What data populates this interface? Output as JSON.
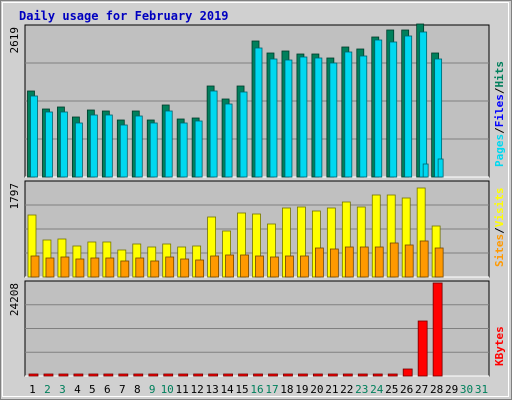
{
  "chart_data": {
    "type": "bar",
    "title": "Daily usage for February 2019",
    "colors": {
      "title": "#0000C0",
      "hits": "#00805C",
      "files": "#00D8F0",
      "pages": "#00D8F0",
      "visits": "#FFFF00",
      "sites": "#FF9900",
      "kbytes": "#FF0000",
      "files_label": "#0000FF",
      "weekend": "#00805C",
      "weekday": "#000000",
      "plot_bg": "#C0C0C0",
      "frame_bg": "#D0D0D0"
    },
    "x": [
      "1",
      "2",
      "3",
      "4",
      "5",
      "6",
      "7",
      "8",
      "9",
      "10",
      "11",
      "12",
      "13",
      "14",
      "15",
      "16",
      "17",
      "18",
      "19",
      "20",
      "21",
      "22",
      "23",
      "24",
      "25",
      "26",
      "27",
      "28",
      "29",
      "30",
      "31"
    ],
    "weekend_days": [
      "2",
      "3",
      "9",
      "10",
      "16",
      "17",
      "23",
      "24",
      "30",
      "31"
    ],
    "panels": [
      {
        "name": "hits-files-pages",
        "max_label": "2619",
        "ymax": 2619,
        "right_labels": [
          {
            "text": "Pages",
            "color": "#00D8F0"
          },
          {
            "text": "/",
            "color": "#000000"
          },
          {
            "text": "Files",
            "color": "#0000FF"
          },
          {
            "text": "/",
            "color": "#000000"
          },
          {
            "text": "Hits",
            "color": "#00805C"
          }
        ],
        "series": [
          {
            "name": "Hits",
            "color": "#00805C",
            "values": [
              1500,
              1180,
              1230,
              1040,
              1170,
              1150,
              990,
              1160,
              1000,
              1250,
              1020,
              1030,
              1585,
              1370,
              1590,
              2380,
              2170,
              2200,
              2150,
              2140,
              2080,
              2270,
              2230,
              2450,
              2570,
              2570,
              2680,
              2160,
              0,
              0,
              0
            ]
          },
          {
            "name": "Files",
            "color": "#00D8F0",
            "values": [
              1420,
              1140,
              1140,
              950,
              1090,
              1080,
              910,
              1060,
              940,
              1160,
              950,
              970,
              1500,
              1280,
              1490,
              2250,
              2060,
              2050,
              2100,
              2080,
              1990,
              2180,
              2110,
              2390,
              2360,
              2470,
              2530,
              2060,
              0,
              0,
              0
            ]
          },
          {
            "name": "Pages",
            "color": "#00D8F0",
            "values": [
              0,
              0,
              0,
              0,
              0,
              0,
              0,
              0,
              0,
              0,
              0,
              0,
              0,
              0,
              0,
              0,
              0,
              0,
              0,
              0,
              0,
              0,
              0,
              0,
              0,
              0,
              220,
              320,
              0,
              0,
              0
            ]
          }
        ]
      },
      {
        "name": "visits-sites",
        "max_label": "1797",
        "ymax": 1797,
        "right_labels": [
          {
            "text": "Sites",
            "color": "#FF9900"
          },
          {
            "text": "/",
            "color": "#000000"
          },
          {
            "text": "Visits",
            "color": "#FFFF00"
          }
        ],
        "series": [
          {
            "name": "Visits",
            "color": "#FFFF00",
            "values": [
              1180,
              700,
              730,
              590,
              660,
              660,
              520,
              640,
              580,
              640,
              580,
              590,
              1150,
              870,
              1220,
              1210,
              1020,
              1320,
              1330,
              1260,
              1320,
              1430,
              1340,
              1560,
              1560,
              1510,
              1700,
              970,
              0,
              0,
              0
            ]
          },
          {
            "name": "Sites",
            "color": "#FF9900",
            "values": [
              400,
              370,
              380,
              340,
              360,
              370,
              300,
              360,
              310,
              380,
              340,
              330,
              400,
              430,
              420,
              410,
              390,
              410,
              400,
              560,
              540,
              570,
              580,
              570,
              650,
              610,
              680,
              560,
              0,
              0,
              0
            ]
          }
        ]
      },
      {
        "name": "kbytes",
        "max_label": "24208",
        "ymax": 24208,
        "right_labels": [
          {
            "text": "KBytes",
            "color": "#FF0000"
          }
        ],
        "series": [
          {
            "name": "KBytes",
            "color": "#FF0000",
            "values": [
              160,
              140,
              160,
              160,
              170,
              170,
              400,
              350,
              200,
              300,
              220,
              250,
              420,
              380,
              420,
              330,
              360,
              420,
              450,
              420,
              500,
              480,
              560,
              540,
              640,
              1900,
              14200,
              24208,
              0,
              0,
              0
            ]
          }
        ]
      }
    ]
  }
}
